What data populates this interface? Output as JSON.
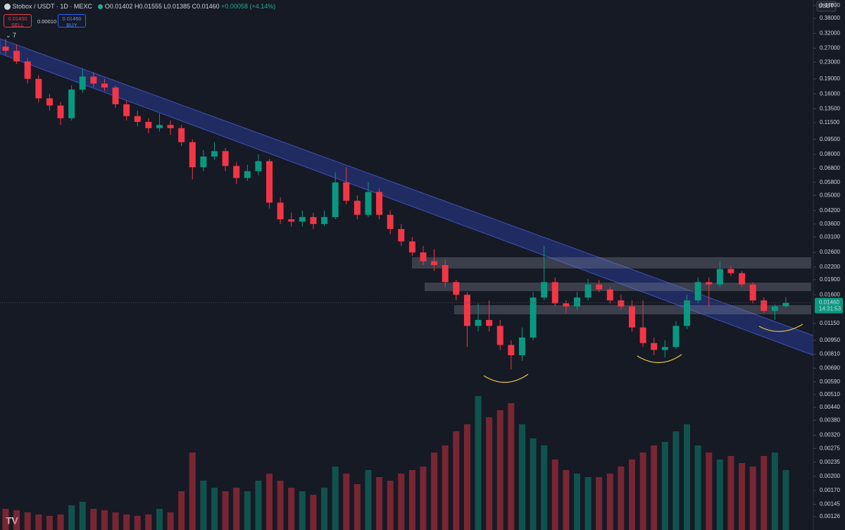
{
  "header": {
    "symbol": "Stobox / USDT · 1D · MEXC",
    "ohlc": [
      "O0.01402",
      "H0.01555",
      "L0.01385",
      "C0.01460",
      "+0.00058 (+4.14%)"
    ],
    "sell_price": "0.01450",
    "sell_label": "SELL",
    "spread": "0.00010",
    "buy_price": "0.01460",
    "buy_label": "BUY",
    "indicators": "7"
  },
  "chart_data": {
    "type": "candlestick",
    "currency": "USDT",
    "log_scale": true,
    "grid": false,
    "up_color": "#089981",
    "down_color": "#f23645",
    "ylim": [
      0.00108,
      0.469
    ],
    "yticks": [
      {
        "value": 0.44,
        "label": "0.44000"
      },
      {
        "value": 0.38,
        "label": "0.38000"
      },
      {
        "value": 0.32,
        "label": "0.32000"
      },
      {
        "value": 0.27,
        "label": "0.27000"
      },
      {
        "value": 0.23,
        "label": "0.23000"
      },
      {
        "value": 0.19,
        "label": "0.19000"
      },
      {
        "value": 0.16,
        "label": "0.16000"
      },
      {
        "value": 0.135,
        "label": "0.13500"
      },
      {
        "value": 0.115,
        "label": "0.11500"
      },
      {
        "value": 0.095,
        "label": "0.09500"
      },
      {
        "value": 0.08,
        "label": "0.08000"
      },
      {
        "value": 0.068,
        "label": "0.06800"
      },
      {
        "value": 0.058,
        "label": "0.05800"
      },
      {
        "value": 0.05,
        "label": "0.05000"
      },
      {
        "value": 0.042,
        "label": "0.04200"
      },
      {
        "value": 0.036,
        "label": "0.03600"
      },
      {
        "value": 0.031,
        "label": "0.03100"
      },
      {
        "value": 0.026,
        "label": "0.02600"
      },
      {
        "value": 0.022,
        "label": "0.02200"
      },
      {
        "value": 0.019,
        "label": "0.01900"
      },
      {
        "value": 0.016,
        "label": "0.01600"
      },
      {
        "value": 0.0115,
        "label": "0.01150"
      },
      {
        "value": 0.0095,
        "label": "0.00950"
      },
      {
        "value": 0.0081,
        "label": "0.00810"
      },
      {
        "value": 0.0069,
        "label": "0.00690"
      },
      {
        "value": 0.0059,
        "label": "0.00590"
      },
      {
        "value": 0.0051,
        "label": "0.00510"
      },
      {
        "value": 0.0044,
        "label": "0.00440"
      },
      {
        "value": 0.0038,
        "label": "0.00380"
      },
      {
        "value": 0.0032,
        "label": "0.00320"
      },
      {
        "value": 0.00275,
        "label": "0.00275"
      },
      {
        "value": 0.00235,
        "label": "0.00235"
      },
      {
        "value": 0.002,
        "label": "0.00200"
      },
      {
        "value": 0.0017,
        "label": "0.00170"
      },
      {
        "value": 0.00145,
        "label": "0.00145"
      },
      {
        "value": 0.00126,
        "label": "0.00126"
      }
    ],
    "last_price": {
      "value": 0.0146,
      "label": "0.01460"
    },
    "countdown": "14:31:53",
    "candles": [
      [
        0.275,
        0.3,
        0.25,
        0.262
      ],
      [
        0.262,
        0.282,
        0.225,
        0.232
      ],
      [
        0.232,
        0.24,
        0.18,
        0.19
      ],
      [
        0.19,
        0.198,
        0.145,
        0.152
      ],
      [
        0.152,
        0.16,
        0.132,
        0.14
      ],
      [
        0.14,
        0.146,
        0.112,
        0.121
      ],
      [
        0.121,
        0.176,
        0.118,
        0.168
      ],
      [
        0.168,
        0.215,
        0.162,
        0.195
      ],
      [
        0.195,
        0.205,
        0.172,
        0.18
      ],
      [
        0.18,
        0.19,
        0.165,
        0.172
      ],
      [
        0.172,
        0.176,
        0.136,
        0.142
      ],
      [
        0.142,
        0.148,
        0.118,
        0.124
      ],
      [
        0.124,
        0.132,
        0.11,
        0.116
      ],
      [
        0.116,
        0.121,
        0.102,
        0.108
      ],
      [
        0.108,
        0.128,
        0.104,
        0.112
      ],
      [
        0.112,
        0.118,
        0.1,
        0.108
      ],
      [
        0.108,
        0.112,
        0.088,
        0.092
      ],
      [
        0.092,
        0.095,
        0.06,
        0.069
      ],
      [
        0.069,
        0.084,
        0.066,
        0.078
      ],
      [
        0.078,
        0.092,
        0.075,
        0.083
      ],
      [
        0.083,
        0.086,
        0.066,
        0.07
      ],
      [
        0.07,
        0.073,
        0.057,
        0.061
      ],
      [
        0.061,
        0.071,
        0.059,
        0.066
      ],
      [
        0.066,
        0.08,
        0.063,
        0.074
      ],
      [
        0.074,
        0.076,
        0.043,
        0.046
      ],
      [
        0.046,
        0.049,
        0.036,
        0.038
      ],
      [
        0.038,
        0.041,
        0.035,
        0.037
      ],
      [
        0.037,
        0.042,
        0.035,
        0.039
      ],
      [
        0.039,
        0.041,
        0.034,
        0.036
      ],
      [
        0.036,
        0.042,
        0.035,
        0.039
      ],
      [
        0.039,
        0.065,
        0.038,
        0.058
      ],
      [
        0.058,
        0.069,
        0.045,
        0.047
      ],
      [
        0.047,
        0.05,
        0.038,
        0.04
      ],
      [
        0.04,
        0.058,
        0.039,
        0.052
      ],
      [
        0.052,
        0.054,
        0.038,
        0.04
      ],
      [
        0.04,
        0.042,
        0.032,
        0.034
      ],
      [
        0.034,
        0.036,
        0.028,
        0.0295
      ],
      [
        0.0295,
        0.031,
        0.025,
        0.026
      ],
      [
        0.026,
        0.028,
        0.0225,
        0.0235
      ],
      [
        0.0235,
        0.027,
        0.021,
        0.0225
      ],
      [
        0.0225,
        0.024,
        0.0175,
        0.0185
      ],
      [
        0.0185,
        0.019,
        0.015,
        0.016
      ],
      [
        0.016,
        0.0165,
        0.0088,
        0.0112
      ],
      [
        0.0112,
        0.0145,
        0.0105,
        0.012
      ],
      [
        0.012,
        0.015,
        0.0105,
        0.0112
      ],
      [
        0.0112,
        0.012,
        0.0085,
        0.009
      ],
      [
        0.009,
        0.0095,
        0.0068,
        0.008
      ],
      [
        0.008,
        0.011,
        0.0075,
        0.0098
      ],
      [
        0.0098,
        0.0165,
        0.0095,
        0.0155
      ],
      [
        0.0155,
        0.028,
        0.015,
        0.0185
      ],
      [
        0.0185,
        0.0195,
        0.014,
        0.0145
      ],
      [
        0.0145,
        0.015,
        0.013,
        0.014
      ],
      [
        0.014,
        0.0165,
        0.0135,
        0.0155
      ],
      [
        0.0155,
        0.0192,
        0.015,
        0.018
      ],
      [
        0.018,
        0.019,
        0.0165,
        0.017
      ],
      [
        0.017,
        0.0175,
        0.0145,
        0.015
      ],
      [
        0.015,
        0.016,
        0.0135,
        0.014
      ],
      [
        0.014,
        0.015,
        0.0105,
        0.011
      ],
      [
        0.011,
        0.015,
        0.0088,
        0.0092
      ],
      [
        0.0092,
        0.0098,
        0.008,
        0.0085
      ],
      [
        0.0085,
        0.0095,
        0.0078,
        0.0088
      ],
      [
        0.0088,
        0.0118,
        0.0086,
        0.0112
      ],
      [
        0.0112,
        0.016,
        0.0108,
        0.015
      ],
      [
        0.015,
        0.0195,
        0.0145,
        0.0185
      ],
      [
        0.0185,
        0.0195,
        0.014,
        0.018
      ],
      [
        0.018,
        0.0235,
        0.0175,
        0.0215
      ],
      [
        0.0215,
        0.0222,
        0.0198,
        0.0205
      ],
      [
        0.0205,
        0.021,
        0.0175,
        0.018
      ],
      [
        0.018,
        0.0185,
        0.0145,
        0.015
      ],
      [
        0.015,
        0.0155,
        0.013,
        0.0133
      ],
      [
        0.0133,
        0.0143,
        0.012,
        0.01402
      ],
      [
        0.01402,
        0.01555,
        0.01385,
        0.0146
      ]
    ],
    "volume": [
      30,
      28,
      25,
      22,
      20,
      22,
      35,
      40,
      30,
      28,
      25,
      22,
      20,
      22,
      30,
      25,
      55,
      110,
      70,
      60,
      55,
      60,
      55,
      70,
      80,
      70,
      60,
      55,
      50,
      60,
      90,
      80,
      65,
      85,
      75,
      70,
      80,
      85,
      90,
      110,
      120,
      140,
      150,
      190,
      160,
      170,
      180,
      150,
      130,
      120,
      100,
      85,
      80,
      75,
      75,
      80,
      90,
      100,
      110,
      120,
      125,
      140,
      150,
      120,
      110,
      100,
      105,
      95,
      90,
      105,
      110,
      85
    ]
  }
}
